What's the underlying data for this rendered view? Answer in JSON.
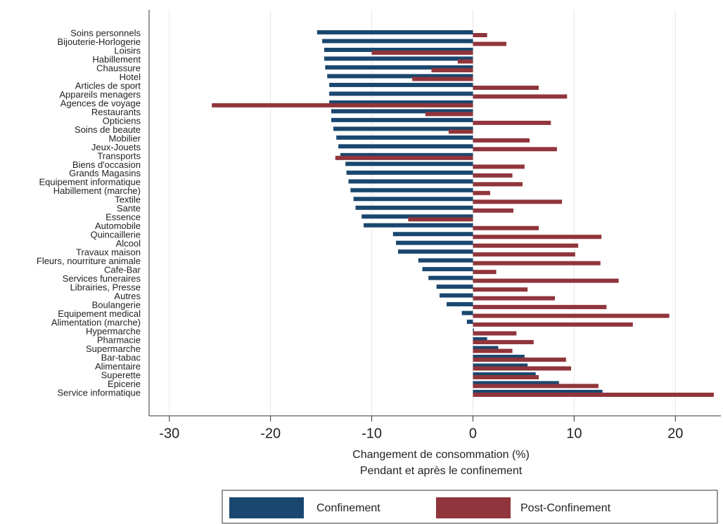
{
  "chart_data": {
    "type": "hbar",
    "xlabel": [
      "Changement de consommation (%)",
      "Pendant et après le confinement"
    ],
    "categories": [
      "Soins personnels",
      "Bijouterie-Horlogerie",
      "Loisirs",
      "Habillement",
      "Chaussure",
      "Hotel",
      "Articles de sport",
      "Appareils menagers",
      "Agences de voyage",
      "Restaurants",
      "Opticiens",
      "Soins de beaute",
      "Mobilier",
      "Jeux-Jouets",
      "Transports",
      "Biens d'occasion",
      "Grands Magasins",
      "Equipement informatique",
      "Habillement (marche)",
      "Textile",
      "Sante",
      "Essence",
      "Automobile",
      "Quincaillerie",
      "Alcool",
      "Travaux maison",
      "Fleurs, nourriture animale",
      "Cafe-Bar",
      "Services funeraires",
      "Librairies, Presse",
      "Autres",
      "Boulangerie",
      "Equipement medical",
      "Alimentation (marche)",
      "Hypermarche",
      "Pharmacie",
      "Supermarche",
      "Bar-tabac",
      "Alimentaire",
      "Superette",
      "Epicerie",
      "Service informatique"
    ],
    "series": [
      {
        "name": "Confinement",
        "color": "#1a476f",
        "values": [
          -15.4,
          -14.9,
          -14.7,
          -14.7,
          -14.6,
          -14.4,
          -14.2,
          -14.2,
          -14.2,
          -14.0,
          -14.0,
          -13.8,
          -13.5,
          -13.3,
          -13.1,
          -12.6,
          -12.5,
          -12.3,
          -12.1,
          -11.8,
          -11.6,
          -11.0,
          -10.8,
          -7.9,
          -7.6,
          -7.4,
          -5.4,
          -5.0,
          -4.4,
          -3.6,
          -3.3,
          -2.6,
          -1.1,
          -0.6,
          0.1,
          1.4,
          2.5,
          5.1,
          5.4,
          6.2,
          8.5,
          12.8
        ]
      },
      {
        "name": "Post-Confinement",
        "color": "#90353b",
        "values": [
          1.4,
          3.3,
          -10.0,
          -1.5,
          -4.1,
          -6.0,
          6.5,
          9.3,
          -25.8,
          -4.7,
          7.7,
          -2.4,
          5.6,
          8.3,
          -13.6,
          5.1,
          3.9,
          4.9,
          1.7,
          8.8,
          4.0,
          -6.4,
          6.5,
          12.7,
          10.4,
          10.1,
          12.6,
          2.3,
          14.4,
          5.4,
          8.1,
          13.2,
          19.4,
          15.8,
          4.3,
          6.0,
          3.9,
          9.2,
          9.7,
          6.5,
          12.4,
          23.8
        ]
      }
    ],
    "xlim": [
      -32,
      24.5
    ],
    "xticks": [
      -30,
      -20,
      -10,
      0,
      10,
      20
    ],
    "grid": true
  }
}
